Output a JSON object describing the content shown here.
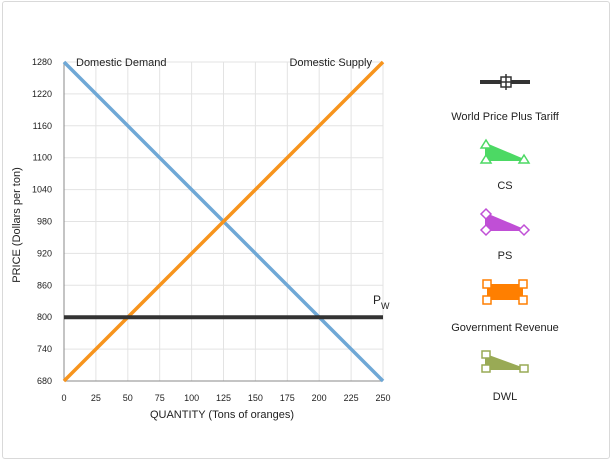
{
  "chart_data": {
    "type": "line",
    "xlabel": "QUANTITY (Tons of oranges)",
    "ylabel": "PRICE (Dollars per ton)",
    "xlim": [
      0,
      250
    ],
    "ylim": [
      680,
      1280
    ],
    "xticks": [
      0,
      25,
      50,
      75,
      100,
      125,
      150,
      175,
      200,
      225,
      250
    ],
    "yticks": [
      680,
      740,
      800,
      860,
      920,
      980,
      1040,
      1100,
      1160,
      1220,
      1280
    ],
    "grid": true,
    "series": [
      {
        "name": "Domestic Demand",
        "color": "#6fa8d6",
        "x": [
          0,
          250
        ],
        "y": [
          1280,
          680
        ]
      },
      {
        "name": "Domestic Supply",
        "color": "#f7941d",
        "x": [
          0,
          250
        ],
        "y": [
          680,
          1280
        ]
      },
      {
        "name": "P",
        "subscript": "W",
        "color": "#333333",
        "x": [
          0,
          250
        ],
        "y": [
          800,
          800
        ]
      }
    ],
    "legend": {
      "placement": "right",
      "items": [
        {
          "label": "World Price Plus Tariff",
          "icon": "crosshair-line-icon",
          "color": "#333333"
        },
        {
          "label": "CS",
          "icon": "triangle-icon",
          "color": "#4cd964"
        },
        {
          "label": "PS",
          "icon": "diamond-triangle-icon",
          "color": "#c04fd6"
        },
        {
          "label": "Government Revenue",
          "icon": "rectangle-icon",
          "color": "#ff7f00"
        },
        {
          "label": "DWL",
          "icon": "square-triangle-icon",
          "color": "#99aa55"
        }
      ]
    }
  }
}
